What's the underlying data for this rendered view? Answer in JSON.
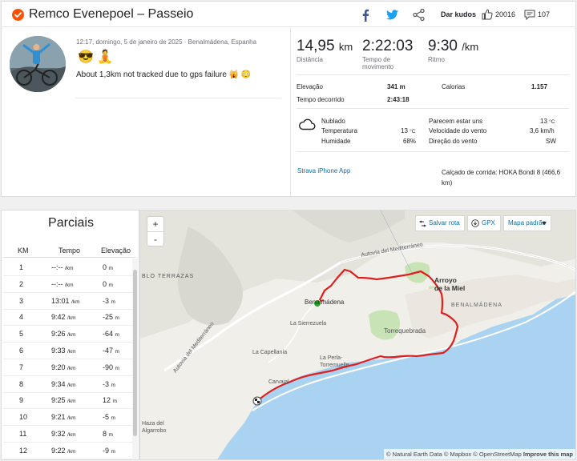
{
  "header": {
    "title": "Remco Evenepoel – Passeio",
    "kudos_label": "Dar kudos",
    "kudos_count": "20016",
    "comment_count": "107"
  },
  "activity": {
    "datetime_location": "12:17, domingo, 5 de janeiro de 2025 · Benalmádena, Espanha",
    "emoji": "😎 🧘",
    "description": "About 1,3km not tracked due to gps failure 🙀 😳"
  },
  "stats": {
    "distance_value": "14,95",
    "distance_unit": "km",
    "distance_label": "Distância",
    "moving_time_value": "2:22:03",
    "moving_time_label_1": "Tempo de",
    "moving_time_label_2": "movimento",
    "pace_value": "9:30",
    "pace_unit": "/km",
    "pace_label": "Ritmo"
  },
  "details": {
    "elevation_label": "Elevação",
    "elevation_value": "341 m",
    "calories_label": "Calorias",
    "calories_value": "1.157",
    "elapsed_label": "Tempo decorrido",
    "elapsed_value": "2:43:18"
  },
  "weather": {
    "icon": "cloud-icon",
    "condition": "Nublado",
    "temperature_label": "Temperatura",
    "temperature_value": "13",
    "temperature_unit": "°C",
    "humidity_label": "Humidade",
    "humidity_value": "68%",
    "feels_like_label": "Parecem estar uns",
    "feels_like_value": "13",
    "feels_like_unit": "°C",
    "wind_speed_label": "Velocidade do vento",
    "wind_speed_value": "3,6 km/h",
    "wind_dir_label": "Direção do vento",
    "wind_dir_value": "SW"
  },
  "device": {
    "app": "Strava iPhone App",
    "shoes_line_1": "Calçado de corrida: HOKA Bondi 8 (466,6",
    "shoes_line_2": "km)"
  },
  "splits": {
    "title": "Parciais",
    "headers": [
      "KM",
      "Tempo",
      "Elevação"
    ],
    "rows": [
      {
        "km": "1",
        "pace": "--:--",
        "unit": "/km",
        "elev": "0",
        "eunit": "m"
      },
      {
        "km": "2",
        "pace": "--:--",
        "unit": "/km",
        "elev": "0",
        "eunit": "m"
      },
      {
        "km": "3",
        "pace": "13:01",
        "unit": "/km",
        "elev": "-3",
        "eunit": "m"
      },
      {
        "km": "4",
        "pace": "9:42",
        "unit": "/km",
        "elev": "-25",
        "eunit": "m"
      },
      {
        "km": "5",
        "pace": "9:26",
        "unit": "/km",
        "elev": "-64",
        "eunit": "m"
      },
      {
        "km": "6",
        "pace": "9:33",
        "unit": "/km",
        "elev": "-47",
        "eunit": "m"
      },
      {
        "km": "7",
        "pace": "9:20",
        "unit": "/km",
        "elev": "-90",
        "eunit": "m"
      },
      {
        "km": "8",
        "pace": "9:34",
        "unit": "/km",
        "elev": "-3",
        "eunit": "m"
      },
      {
        "km": "9",
        "pace": "9:25",
        "unit": "/km",
        "elev": "12",
        "eunit": "m"
      },
      {
        "km": "10",
        "pace": "9:21",
        "unit": "/km",
        "elev": "-5",
        "eunit": "m"
      },
      {
        "km": "11",
        "pace": "9:32",
        "unit": "/km",
        "elev": "8",
        "eunit": "m"
      },
      {
        "km": "12",
        "pace": "9:22",
        "unit": "/km",
        "elev": "-9",
        "eunit": "m"
      }
    ]
  },
  "map": {
    "zoom_in": "+",
    "zoom_out": "-",
    "save_route": "Salvar rota",
    "gpx": "GPX",
    "map_style": "Mapa padrão",
    "attribution_1": "© Natural Earth Data",
    "attribution_2": "© Mapbox",
    "attribution_3": "© OpenStreetMap",
    "attribution_4": "Improve this map",
    "labels": {
      "autovia_top": "Autovía del Mediterráneo",
      "autovia_left": "Autovía del Mediterráneo",
      "bloterrazas": "BLO TERRAZAS",
      "arroyo_1": "Arroyo",
      "arroyo_2": "de la Miel",
      "benalmadena": "Benalmádena",
      "benalmadena_coast": "BENALMÁDENA",
      "sierrezuela": "La Sierrezuela",
      "torrequebrada": "Torrequebrada",
      "capellania": "La Capellanía",
      "perla_1": "La Perla-",
      "perla_2": "Torremuelle",
      "carvajal": "Carvajal",
      "haza_1": "Haza del",
      "haza_2": "Algarrobo"
    }
  }
}
